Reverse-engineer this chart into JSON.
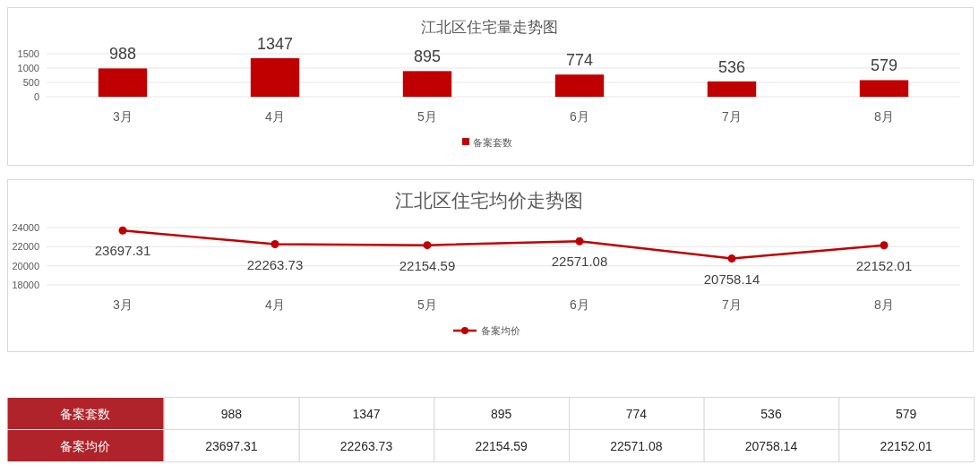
{
  "chart_data": [
    {
      "type": "bar",
      "title": "江北区住宅量走势图",
      "categories": [
        "3月",
        "4月",
        "5月",
        "6月",
        "7月",
        "8月"
      ],
      "series": [
        {
          "name": "备案套数",
          "color": "#c00000",
          "values": [
            988,
            1347,
            895,
            774,
            536,
            579
          ]
        }
      ],
      "ylim": [
        0,
        1500
      ],
      "yticks": [
        0,
        500,
        1000,
        1500
      ],
      "grid": "y",
      "legend": "bottom",
      "data_labels": true
    },
    {
      "type": "line",
      "title": "江北区住宅均价走势图",
      "categories": [
        "3月",
        "4月",
        "5月",
        "6月",
        "7月",
        "8月"
      ],
      "series": [
        {
          "name": "备案均价",
          "color": "#c00000",
          "values": [
            23697.31,
            22263.73,
            22154.59,
            22571.08,
            20758.14,
            22152.01
          ]
        }
      ],
      "ylim": [
        18000,
        24000
      ],
      "yticks": [
        18000,
        20000,
        22000,
        24000
      ],
      "grid": "y",
      "legend": "bottom",
      "data_labels": true,
      "marker": "circle",
      "line_style": "solid"
    },
    {
      "type": "other",
      "annotations": [
        "备案套数",
        "988",
        "1347",
        "895",
        "774",
        "536",
        "579",
        "备案均价",
        "23697.31",
        "22263.73",
        "22154.59",
        "22571.08",
        "20758.14",
        "22152.01"
      ]
    }
  ]
}
